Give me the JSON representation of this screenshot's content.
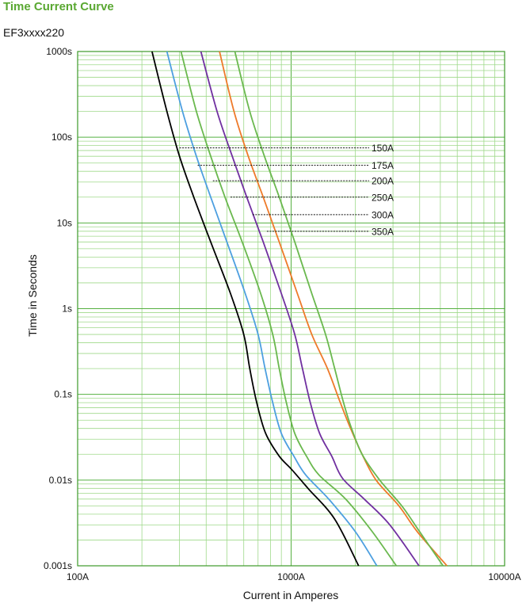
{
  "header": {
    "title": "Time Current Curve",
    "subtitle": "EF3xxxx220"
  },
  "chart_data": {
    "type": "line",
    "title": "Time Current Curve",
    "subtitle": "EF3xxxx220",
    "xlabel": "Current in Amperes",
    "ylabel": "Time in Seconds",
    "xscale": "log",
    "yscale": "log",
    "xlim": [
      100,
      10000
    ],
    "ylim": [
      0.001,
      1000
    ],
    "xticks": [
      {
        "value": 100,
        "label": "100A"
      },
      {
        "value": 1000,
        "label": "1000A"
      },
      {
        "value": 10000,
        "label": "10000A"
      }
    ],
    "yticks": [
      {
        "value": 1000,
        "label": "1000s"
      },
      {
        "value": 100,
        "label": "100s"
      },
      {
        "value": 10,
        "label": "10s"
      },
      {
        "value": 1,
        "label": "1s"
      },
      {
        "value": 0.1,
        "label": "0.1s"
      },
      {
        "value": 0.01,
        "label": "0.01s"
      },
      {
        "value": 0.001,
        "label": "0.001s"
      }
    ],
    "grid": true,
    "colors": {
      "grid": "#9fd98a",
      "grid_major": "#55b040",
      "axis": "#3d9a2a"
    },
    "series": [
      {
        "name": "150A",
        "color": "#000000",
        "points": [
          [
            223,
            1000
          ],
          [
            262,
            200
          ],
          [
            300,
            60
          ],
          [
            350,
            20
          ],
          [
            420,
            6
          ],
          [
            520,
            1.5
          ],
          [
            600,
            0.5
          ],
          [
            640,
            0.2
          ],
          [
            690,
            0.08
          ],
          [
            760,
            0.035
          ],
          [
            880,
            0.019
          ],
          [
            1000,
            0.0135
          ],
          [
            1200,
            0.008
          ],
          [
            1600,
            0.0035
          ],
          [
            2070,
            0.001
          ]
        ]
      },
      {
        "name": "175A",
        "color": "#4d9fe0",
        "points": [
          [
            262,
            1000
          ],
          [
            310,
            200
          ],
          [
            360,
            60
          ],
          [
            420,
            20
          ],
          [
            500,
            6
          ],
          [
            610,
            1.5
          ],
          [
            700,
            0.5
          ],
          [
            755,
            0.2
          ],
          [
            820,
            0.08
          ],
          [
            900,
            0.035
          ],
          [
            1030,
            0.019
          ],
          [
            1170,
            0.0115
          ],
          [
            1500,
            0.006
          ],
          [
            2000,
            0.0025
          ],
          [
            2520,
            0.001
          ]
        ]
      },
      {
        "name": "200A",
        "color": "#6ab84e",
        "points": [
          [
            305,
            1000
          ],
          [
            360,
            200
          ],
          [
            420,
            60
          ],
          [
            490,
            20
          ],
          [
            590,
            6
          ],
          [
            720,
            1.5
          ],
          [
            820,
            0.5
          ],
          [
            880,
            0.2
          ],
          [
            950,
            0.08
          ],
          [
            1040,
            0.035
          ],
          [
            1180,
            0.019
          ],
          [
            1350,
            0.0115
          ],
          [
            1800,
            0.006
          ],
          [
            2400,
            0.0025
          ],
          [
            3110,
            0.001
          ]
        ]
      },
      {
        "name": "250A",
        "color": "#7030a0",
        "points": [
          [
            378,
            1000
          ],
          [
            450,
            200
          ],
          [
            530,
            60
          ],
          [
            620,
            20
          ],
          [
            740,
            6
          ],
          [
            900,
            1.5
          ],
          [
            1040,
            0.5
          ],
          [
            1130,
            0.2
          ],
          [
            1230,
            0.08
          ],
          [
            1360,
            0.035
          ],
          [
            1550,
            0.019
          ],
          [
            1740,
            0.0105
          ],
          [
            2200,
            0.006
          ],
          [
            2900,
            0.003
          ],
          [
            3970,
            0.001
          ]
        ]
      },
      {
        "name": "300A",
        "color": "#ee7a2a",
        "points": [
          [
            462,
            1000
          ],
          [
            540,
            200
          ],
          [
            630,
            60
          ],
          [
            740,
            20
          ],
          [
            880,
            6
          ],
          [
            1070,
            1.5
          ],
          [
            1250,
            0.5
          ],
          [
            1480,
            0.2
          ],
          [
            1700,
            0.08
          ],
          [
            1900,
            0.04
          ],
          [
            2150,
            0.02
          ],
          [
            2500,
            0.01
          ],
          [
            3200,
            0.005
          ],
          [
            3900,
            0.0025
          ],
          [
            5370,
            0.001
          ]
        ]
      },
      {
        "name": "350A",
        "color": "#6ab84e",
        "points": [
          [
            545,
            1000
          ],
          [
            640,
            200
          ],
          [
            750,
            60
          ],
          [
            880,
            20
          ],
          [
            1040,
            6
          ],
          [
            1250,
            1.5
          ],
          [
            1450,
            0.5
          ],
          [
            1600,
            0.2
          ],
          [
            1760,
            0.08
          ],
          [
            1920,
            0.04
          ],
          [
            2150,
            0.02
          ],
          [
            2600,
            0.01
          ],
          [
            3300,
            0.005
          ],
          [
            4000,
            0.0025
          ],
          [
            5150,
            0.001
          ]
        ]
      }
    ],
    "annotations": [
      {
        "label": "150A",
        "y": 75,
        "x_start": 300
      },
      {
        "label": "175A",
        "y": 47,
        "x_start": 365
      },
      {
        "label": "200A",
        "y": 31,
        "x_start": 430
      },
      {
        "label": "250A",
        "y": 20,
        "x_start": 520
      },
      {
        "label": "300A",
        "y": 12.5,
        "x_start": 660
      },
      {
        "label": "350A",
        "y": 8,
        "x_start": 770
      }
    ]
  }
}
